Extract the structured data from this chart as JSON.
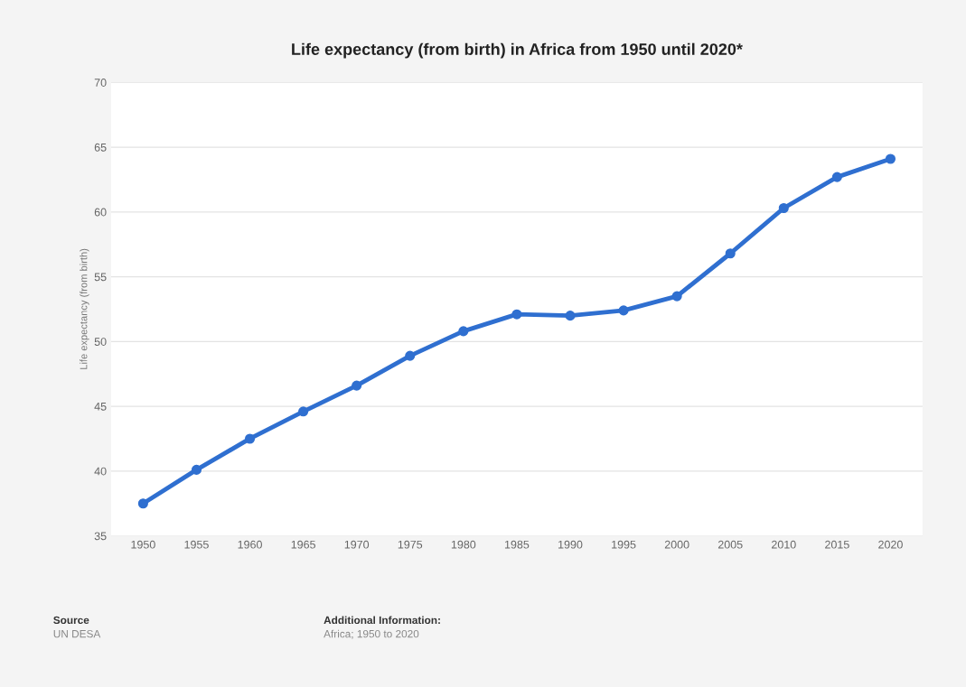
{
  "chart_data": {
    "type": "line",
    "title": "Life expectancy (from birth) in Africa from 1950 until 2020*",
    "ylabel": "Life expectancy (from birth)",
    "categories": [
      "1950",
      "1955",
      "1960",
      "1965",
      "1970",
      "1975",
      "1980",
      "1985",
      "1990",
      "1995",
      "2000",
      "2005",
      "2010",
      "2015",
      "2020"
    ],
    "series": [
      {
        "color": "#2f6fd0",
        "values": [
          37.5,
          40.1,
          42.5,
          44.6,
          46.6,
          48.9,
          50.8,
          52.1,
          52.0,
          52.4,
          53.5,
          56.8,
          60.3,
          62.7,
          64.1
        ]
      }
    ],
    "ylim": [
      35,
      70
    ],
    "yticks": [
      35,
      40,
      45,
      50,
      55,
      60,
      65,
      70
    ],
    "grid": "y",
    "marker": "circle",
    "line_style": "solid",
    "annotations": [
      "Source",
      "UN DESA",
      "Additional Information:",
      "Africa; 1950 to 2020"
    ]
  }
}
